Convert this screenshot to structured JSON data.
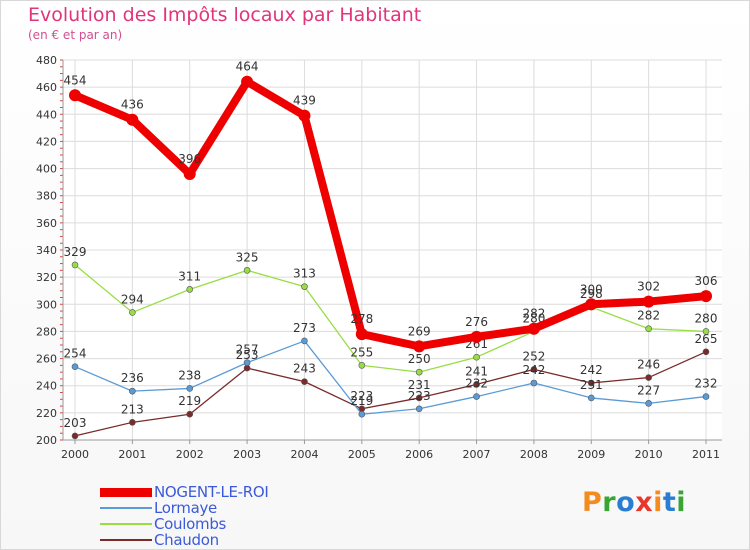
{
  "title": "Evolution des Impôts locaux par Habitant",
  "subtitle": "(en € et par an)",
  "brand": {
    "letters": [
      "P",
      "r",
      "o",
      "x",
      "i",
      "t",
      "i"
    ],
    "colors": [
      "#f58a1f",
      "#3aa535",
      "#2a7ed0",
      "#e8362b",
      "#f58a1f",
      "#2a7ed0",
      "#3aa535"
    ]
  },
  "chart_data": {
    "type": "line",
    "title": "Evolution des Impôts locaux par Habitant",
    "subtitle": "(en € et par an)",
    "x": [
      "2000",
      "2001",
      "2002",
      "2003",
      "2004",
      "2005",
      "2006",
      "2007",
      "2008",
      "2009",
      "2010",
      "2011"
    ],
    "ylim": [
      200,
      480
    ],
    "yticks": [
      "200",
      "220",
      "240",
      "260",
      "280",
      "300",
      "320",
      "340",
      "360",
      "380",
      "400",
      "420",
      "440",
      "460",
      "480"
    ],
    "grid": true,
    "series": [
      {
        "name": "Chaudon",
        "color": "#7a2b2b",
        "values": [
          203,
          213,
          219,
          253,
          243,
          223,
          231,
          241,
          252,
          242,
          246,
          265
        ],
        "labels": [
          "203",
          "213",
          "219",
          "253",
          "243",
          "223",
          "231",
          "241",
          "252",
          "242",
          "246",
          "265"
        ]
      },
      {
        "name": "Lormaye",
        "color": "#5b9bd5",
        "values": [
          254,
          236,
          238,
          257,
          273,
          219,
          223,
          232,
          242,
          231,
          227,
          232
        ],
        "labels": [
          "254",
          "236",
          "238",
          "257",
          "273",
          "219",
          "223",
          "232",
          "242",
          "231",
          "227",
          "232"
        ]
      },
      {
        "name": "Coulombs",
        "color": "#99dd44",
        "values": [
          329,
          294,
          311,
          325,
          313,
          255,
          250,
          261,
          280,
          298,
          282,
          280
        ],
        "labels": [
          "329",
          "294",
          "311",
          "325",
          "313",
          "255",
          "250",
          "261",
          "280",
          "298",
          "282",
          "280"
        ]
      },
      {
        "name": "NOGENT-LE-ROI",
        "color": "#ee0000",
        "values": [
          454,
          436,
          396,
          464,
          439,
          278,
          269,
          276,
          282,
          300,
          302,
          306
        ],
        "labels": [
          "454",
          "436",
          "396",
          "464",
          "439",
          "278",
          "269",
          "276",
          "282",
          "300",
          "302",
          "306"
        ]
      }
    ],
    "legend": [
      "NOGENT-LE-ROI",
      "Lormaye",
      "Coulombs",
      "Chaudon"
    ]
  }
}
